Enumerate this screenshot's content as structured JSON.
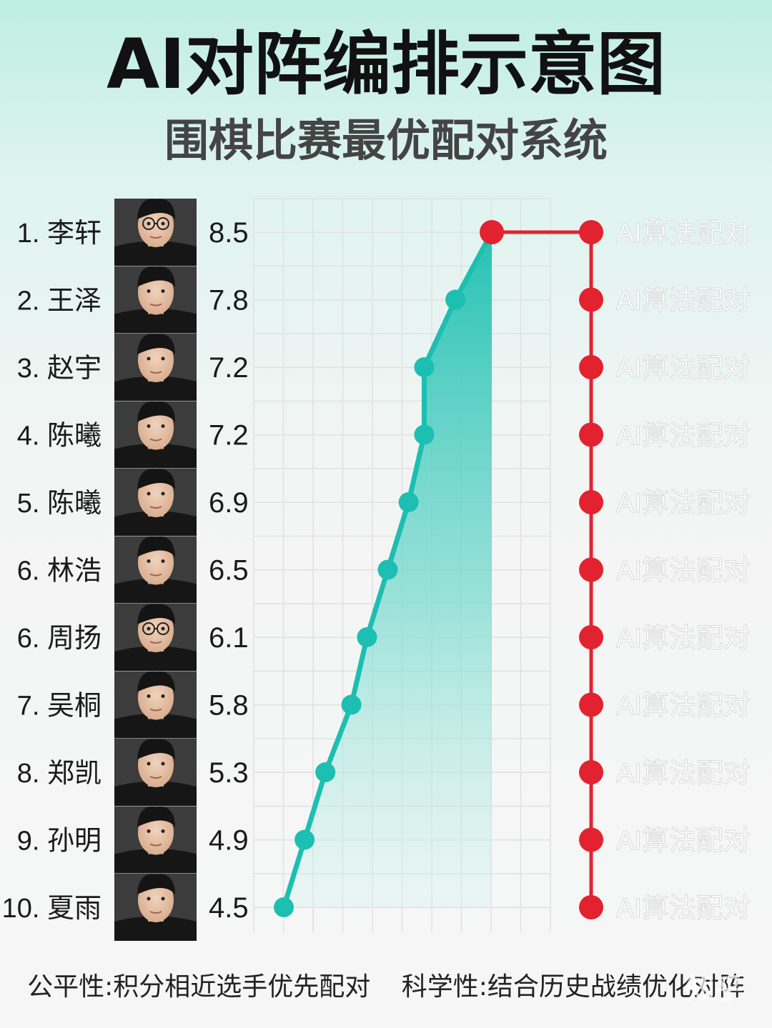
{
  "title": "AI对阵编排示意图",
  "subtitle": "围棋比赛最优配对系统",
  "footer": {
    "fairness": "公平性:积分相近选手优先配对",
    "science": "科学性:结合历史战绩优化对阵"
  },
  "watermark": "知乎",
  "colors": {
    "teal": "#1cbfb1",
    "red": "#e3222f",
    "pair_label": "#ffffff",
    "grid": "#e1e1e1"
  },
  "chart_data": {
    "type": "line",
    "categories": [
      "1. 李轩",
      "2. 王泽",
      "3. 赵宇",
      "4. 陈曦",
      "5. 陈曦",
      "6. 林浩",
      "6. 周扬",
      "7. 吴桐",
      "8. 郑凯",
      "9. 孙明",
      "10. 夏雨"
    ],
    "values": [
      8.5,
      7.8,
      7.2,
      7.2,
      6.9,
      6.5,
      6.1,
      5.8,
      5.3,
      4.9,
      4.5
    ],
    "value_labels": [
      "8.5",
      "7.8",
      "7.2",
      "7.2",
      "6.9",
      "6.5",
      "6.1",
      "5.8",
      "5.3",
      "4.9",
      "4.5"
    ],
    "pair_labels": [
      "AI算法配对",
      "AI算法配对",
      "AI算法配对",
      "AI算法配对",
      "AI算法配对",
      "AI算法配对",
      "AI算法配对",
      "AI算法配对",
      "AI算法配对",
      "AI算法配对",
      "AI算法配对"
    ],
    "avatars": [
      "avatar-glasses",
      "avatar",
      "avatar",
      "avatar",
      "avatar",
      "avatar",
      "avatar-glasses",
      "avatar",
      "avatar",
      "avatar",
      "avatar"
    ],
    "grid": true
  }
}
